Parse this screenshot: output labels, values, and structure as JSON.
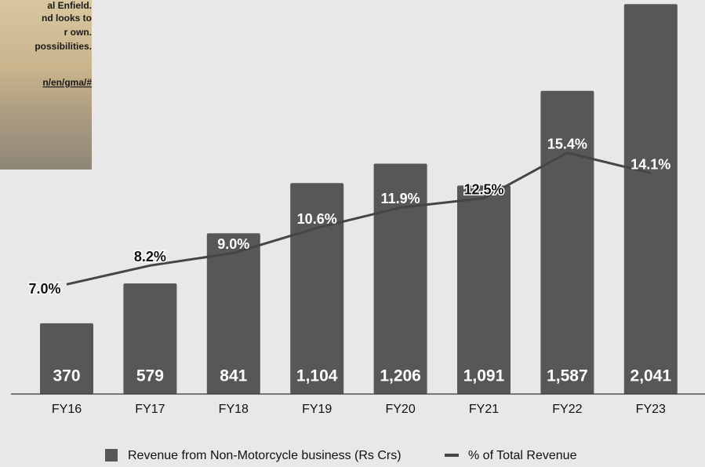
{
  "chart_data": {
    "type": "bar",
    "categories": [
      "FY16",
      "FY17",
      "FY18",
      "FY19",
      "FY20",
      "FY21",
      "FY22",
      "FY23"
    ],
    "series": [
      {
        "name": "Revenue from Non-Motorcycle business (Rs Crs)",
        "type": "bar",
        "color": "#575757",
        "values": [
          370,
          579,
          841,
          1104,
          1206,
          1091,
          1587,
          2041
        ],
        "value_labels": [
          "370",
          "579",
          "841",
          "1,104",
          "1,206",
          "1,091",
          "1,587",
          "2,041"
        ]
      },
      {
        "name": "% of Total Revenue",
        "type": "line",
        "axis": "y2",
        "color": "#454545",
        "values": [
          7.0,
          8.2,
          9.0,
          10.6,
          11.9,
          12.5,
          15.4,
          14.1
        ],
        "value_labels": [
          "7.0%",
          "8.2%",
          "9.0%",
          "10.6%",
          "11.9%",
          "12.5%",
          "15.4%",
          "14.1%"
        ]
      }
    ],
    "ylim": [
      0,
      2050
    ],
    "y2lim": [
      0,
      25
    ],
    "legend": "bottom"
  },
  "overlay": {
    "lines": [
      "al Enfield.",
      "nd looks to",
      "r own.",
      "possibilities.",
      "n/en/gma/#"
    ]
  }
}
